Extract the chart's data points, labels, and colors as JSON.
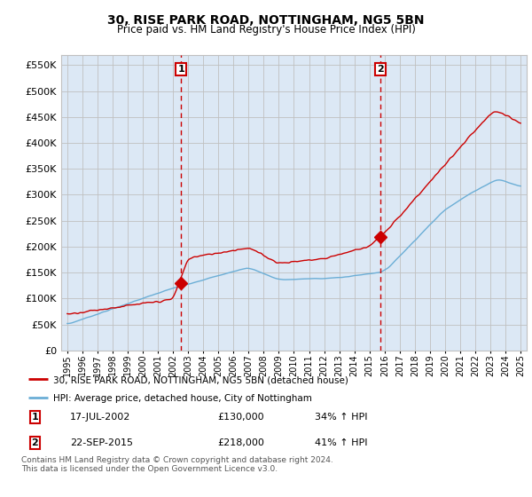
{
  "title": "30, RISE PARK ROAD, NOTTINGHAM, NG5 5BN",
  "subtitle": "Price paid vs. HM Land Registry's House Price Index (HPI)",
  "legend_line1": "30, RISE PARK ROAD, NOTTINGHAM, NG5 5BN (detached house)",
  "legend_line2": "HPI: Average price, detached house, City of Nottingham",
  "sale1_date": "17-JUL-2002",
  "sale1_price": "£130,000",
  "sale1_hpi": "34% ↑ HPI",
  "sale2_date": "22-SEP-2015",
  "sale2_price": "£218,000",
  "sale2_hpi": "41% ↑ HPI",
  "footer": "Contains HM Land Registry data © Crown copyright and database right 2024.\nThis data is licensed under the Open Government Licence v3.0.",
  "sale1_year": 2002.54,
  "sale2_year": 2015.72,
  "sale1_value": 130000,
  "sale2_value": 218000,
  "red_color": "#cc0000",
  "blue_color": "#6baed6",
  "vline_color": "#cc0000",
  "grid_color": "#c0c0c0",
  "plot_bg_color": "#dce8f5",
  "background_color": "#ffffff",
  "ylim": [
    0,
    570000
  ],
  "yticks": [
    0,
    50000,
    100000,
    150000,
    200000,
    250000,
    300000,
    350000,
    400000,
    450000,
    500000,
    550000
  ],
  "xlim": [
    1994.6,
    2025.4
  ],
  "xticks": [
    1995,
    1996,
    1997,
    1998,
    1999,
    2000,
    2001,
    2002,
    2003,
    2004,
    2005,
    2006,
    2007,
    2008,
    2009,
    2010,
    2011,
    2012,
    2013,
    2014,
    2015,
    2016,
    2017,
    2018,
    2019,
    2020,
    2021,
    2022,
    2023,
    2024,
    2025
  ]
}
